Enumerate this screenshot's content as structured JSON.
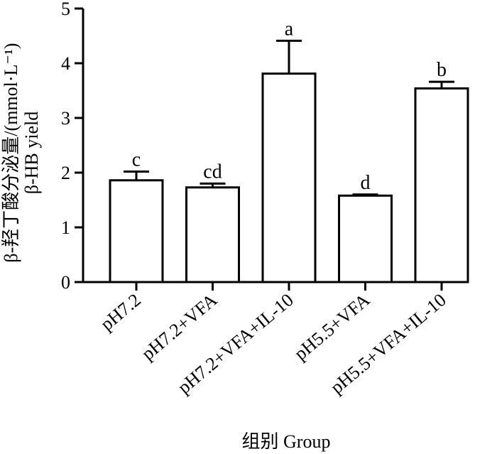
{
  "chart_data": {
    "type": "bar",
    "categories": [
      "pH7.2",
      "pH7.2+VFA",
      "pH7.2+VFA+IL-10",
      "pH5.5+VFA",
      "pH5.5+VFA+IL-10"
    ],
    "values": [
      1.86,
      1.73,
      3.81,
      1.58,
      3.54
    ],
    "errors": [
      0.16,
      0.07,
      0.6,
      0.02,
      0.12
    ],
    "significance": [
      "c",
      "cd",
      "a",
      "d",
      "b"
    ],
    "ylabel_cn": "β-羟丁酸分泌量/(mmol·L⁻¹)",
    "ylabel_en": "β-HB yield",
    "xlabel": "组别 Group",
    "ylim": [
      0,
      5
    ],
    "yticks": [
      0,
      1,
      2,
      3,
      4,
      5
    ],
    "grid": false,
    "bar_fill": "#ffffff",
    "bar_stroke": "#000000"
  }
}
